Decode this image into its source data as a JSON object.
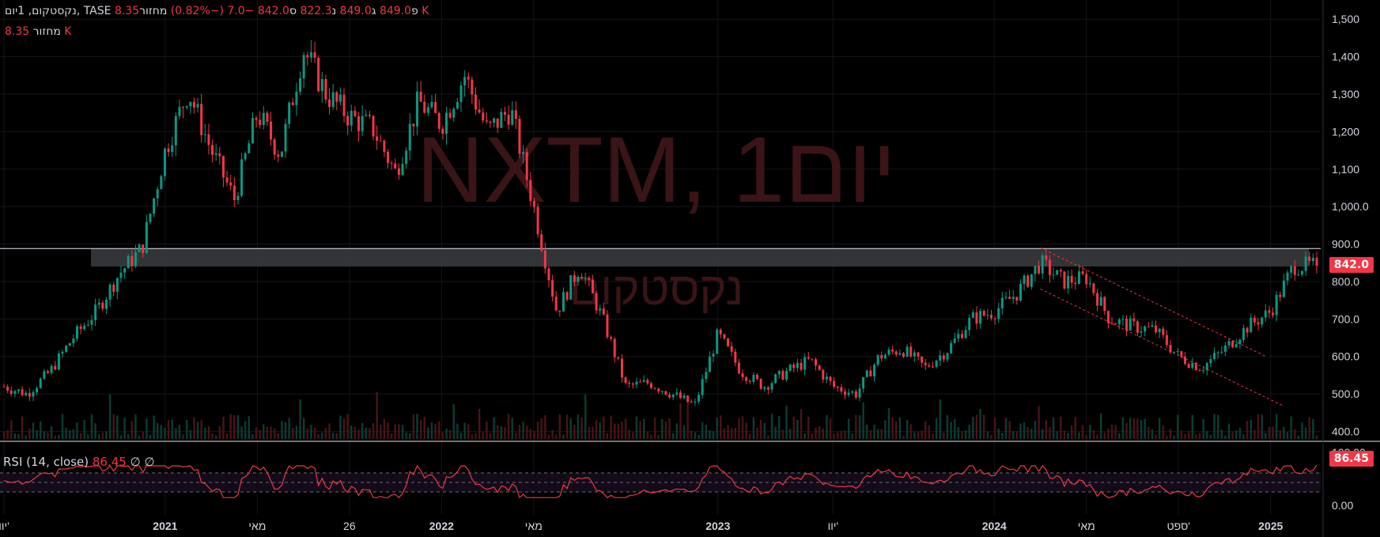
{
  "header": {
    "symbol_line": "נקסטקום, 1יום, TASE",
    "open_label": "פ",
    "open_value": "849.0",
    "high_label": "ג",
    "high_value": "849.0",
    "low_label": "נ",
    "low_value": "822.3",
    "close_label": "ס",
    "close_value": "842.0",
    "change": "−7.0 (−0.82%)",
    "volume_label": "מחזור",
    "volume_value": "8.35 K",
    "volume_label_2": "מחזור",
    "volume_value_2": "8.35 K"
  },
  "watermark": {
    "symbol": "NXTM, 1יום",
    "name": "נקסטקום"
  },
  "rsi": {
    "label": "RSI (14, close)",
    "value": "86.45",
    "extra1": "∅",
    "extra2": "∅"
  },
  "price_tag": "842.0",
  "rsi_tag": "86.45",
  "colors": {
    "up": "#089981",
    "down": "#f23645",
    "rsi": "#f23645",
    "watermark": "#3a1416"
  },
  "chart_data": {
    "type": "candlestick",
    "y_ticks": [
      "1,500",
      "1,400",
      "1,300",
      "1,200",
      "1,100",
      "1,000.0",
      "900.0",
      "800.0",
      "700.0",
      "600.0",
      "500.0",
      "400.0"
    ],
    "y_tick_values": [
      1500,
      1400,
      1300,
      1200,
      1100,
      1000,
      900,
      800,
      700,
      600,
      500,
      400
    ],
    "ylim": [
      380,
      1530
    ],
    "x_ticks": [
      "יוו'",
      "2021",
      "מאי",
      "26",
      "2022",
      "מאי",
      "2023",
      "יוו'",
      "2024",
      "מאי",
      "ספט'",
      "2025"
    ],
    "x_tick_dates": [
      "2020-06",
      "2021-01",
      "2021-05",
      "2021-09",
      "2022-01",
      "2022-05",
      "2023-01",
      "2023-06",
      "2024-01",
      "2024-05",
      "2024-09",
      "2025-01"
    ],
    "last_close": 842.0,
    "horizontal_line": 888,
    "resistance_zone": [
      840,
      888
    ],
    "close_series": [
      [
        "2020-06",
        520
      ],
      [
        "2020-07",
        500
      ],
      [
        "2020-08",
        560
      ],
      [
        "2020-09",
        650
      ],
      [
        "2020-10",
        720
      ],
      [
        "2020-11",
        820
      ],
      [
        "2020-12",
        890
      ],
      [
        "2021-01",
        1150
      ],
      [
        "2021-02",
        1310
      ],
      [
        "2021-03",
        1150
      ],
      [
        "2021-04",
        1020
      ],
      [
        "2021-05",
        1250
      ],
      [
        "2021-06",
        1140
      ],
      [
        "2021-07",
        1420
      ],
      [
        "2021-08",
        1300
      ],
      [
        "2021-09",
        1240
      ],
      [
        "2021-10",
        1210
      ],
      [
        "2021-11",
        1090
      ],
      [
        "2021-12",
        1280
      ],
      [
        "2022-01",
        1220
      ],
      [
        "2022-02",
        1350
      ],
      [
        "2022-03",
        1200
      ],
      [
        "2022-04",
        1260
      ],
      [
        "2022-05",
        1000
      ],
      [
        "2022-06",
        720
      ],
      [
        "2022-07",
        840
      ],
      [
        "2022-08",
        700
      ],
      [
        "2022-09",
        520
      ],
      [
        "2022-10",
        530
      ],
      [
        "2022-11",
        500
      ],
      [
        "2022-12",
        470
      ],
      [
        "2023-01",
        660
      ],
      [
        "2023-02",
        560
      ],
      [
        "2023-03",
        520
      ],
      [
        "2023-04",
        560
      ],
      [
        "2023-05",
        590
      ],
      [
        "2023-06",
        520
      ],
      [
        "2023-07",
        500
      ],
      [
        "2023-08",
        600
      ],
      [
        "2023-09",
        620
      ],
      [
        "2023-10",
        570
      ],
      [
        "2023-11",
        620
      ],
      [
        "2023-12",
        700
      ],
      [
        "2024-01",
        720
      ],
      [
        "2024-02",
        770
      ],
      [
        "2024-03",
        850
      ],
      [
        "2024-04",
        800
      ],
      [
        "2024-05",
        810
      ],
      [
        "2024-06",
        700
      ],
      [
        "2024-07",
        680
      ],
      [
        "2024-08",
        670
      ],
      [
        "2024-09",
        600
      ],
      [
        "2024-10",
        570
      ],
      [
        "2024-11",
        620
      ],
      [
        "2024-12",
        680
      ],
      [
        "2025-01",
        720
      ],
      [
        "2025-02",
        842
      ]
    ],
    "rsi_ticks": [
      "100.00",
      "0.00"
    ],
    "rsi_levels": [
      70,
      50,
      30
    ],
    "rsi_last": 86.45
  }
}
